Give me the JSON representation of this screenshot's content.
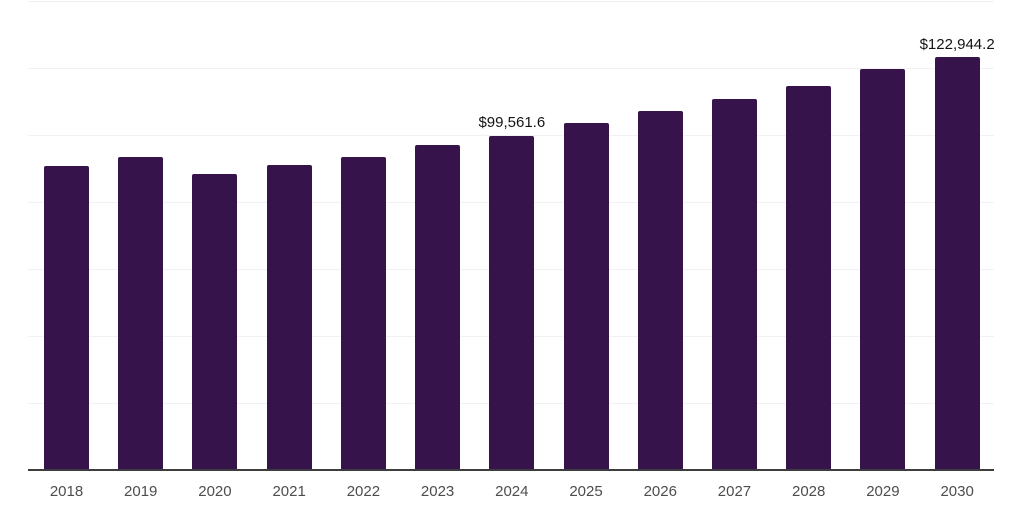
{
  "chart_data": {
    "type": "bar",
    "categories": [
      "2018",
      "2019",
      "2020",
      "2021",
      "2022",
      "2023",
      "2024",
      "2025",
      "2026",
      "2027",
      "2028",
      "2029",
      "2030"
    ],
    "values": [
      90400,
      93200,
      88200,
      90900,
      93200,
      96700,
      99561.6,
      103300,
      106800,
      110600,
      114400,
      119300,
      122944.2
    ],
    "annotations": [
      {
        "category": "2024",
        "text": "$99,561.6"
      },
      {
        "category": "2030",
        "text": "$122,944.2"
      }
    ],
    "xlabel": "",
    "ylabel": "",
    "ylim": [
      0,
      140000
    ],
    "grid_step": 20000,
    "grid": true,
    "legend": false,
    "colors": {
      "bar": "#36134b",
      "grid": "#f1f1f1",
      "axis": "#3d3d3d",
      "tick_label": "#4d4d4d",
      "value_label": "#141414",
      "background": "#ffffff"
    }
  }
}
